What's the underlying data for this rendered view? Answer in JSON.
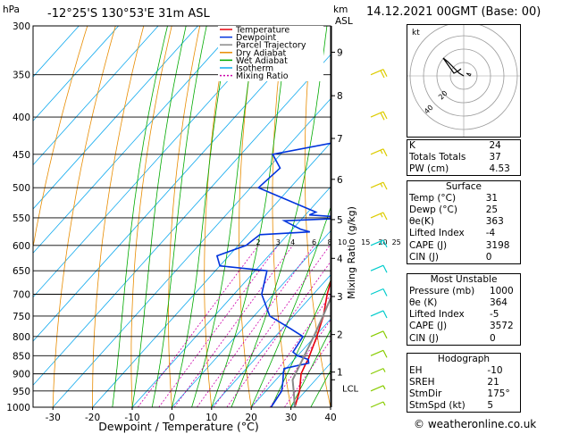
{
  "header": {
    "hpa_label": "hPa",
    "location": "-12°25'S  130°53'E  31m  ASL",
    "km_label": "km",
    "asl_label": "ASL",
    "datetime": "14.12.2021  00GMT  (Base: 00)"
  },
  "legend": [
    {
      "label": "Temperature",
      "color": "#e8000b"
    },
    {
      "label": "Dewpoint",
      "color": "#0033dd"
    },
    {
      "label": "Parcel Trajectory",
      "color": "#888888"
    },
    {
      "label": "Dry Adiabat",
      "color": "#e88c00"
    },
    {
      "label": "Wet Adiabat",
      "color": "#00aa00"
    },
    {
      "label": "Isotherm",
      "color": "#11aaee"
    },
    {
      "label": "Mixing Ratio",
      "color": "#cc00aa"
    }
  ],
  "chart_data": {
    "type": "line",
    "xlabel": "Dewpoint / Temperature (°C)",
    "ylabel_right": "Mixing Ratio (g/kg)",
    "x_ticks": [
      -30,
      -20,
      -10,
      0,
      10,
      20,
      30,
      40
    ],
    "xlim": [
      -35,
      40
    ],
    "pressure_ticks": [
      300,
      350,
      400,
      450,
      500,
      550,
      600,
      650,
      700,
      750,
      800,
      850,
      900,
      950,
      1000
    ],
    "pressure_range": [
      300,
      1000
    ],
    "km_ticks": [
      {
        "km": "1",
        "p": 895
      },
      {
        "km": "2",
        "p": 795
      },
      {
        "km": "3",
        "p": 705
      },
      {
        "km": "4",
        "p": 625
      },
      {
        "km": "5",
        "p": 553
      },
      {
        "km": "6",
        "p": 487
      },
      {
        "km": "7",
        "p": 428
      },
      {
        "km": "8",
        "p": 374
      },
      {
        "km": "9",
        "p": 326
      }
    ],
    "lcl_label": "LCL",
    "lcl_p": 917,
    "mixing_ratio_labels": [
      "2",
      "3",
      "4",
      "6",
      "8",
      "10",
      "15",
      "20",
      "25"
    ],
    "mixing_ratio_values": [
      2,
      3,
      4,
      6,
      8,
      10,
      15,
      20,
      25
    ],
    "series": [
      {
        "name": "Temperature",
        "color": "#e8000b",
        "p": [
          1000,
          950,
          900,
          875,
          860,
          850,
          800,
          750,
          700,
          650,
          640,
          620,
          600,
          580,
          560,
          550,
          540,
          500,
          450,
          400,
          370,
          350
        ],
        "t": [
          31,
          28.5,
          25,
          24,
          23.5,
          23,
          20.5,
          17.5,
          13.5,
          9.8,
          10.4,
          10,
          9,
          7.5,
          6,
          5.8,
          5,
          1.5,
          -3.5,
          -9.5,
          -14,
          -17.5
        ]
      },
      {
        "name": "Dewpoint",
        "color": "#0033dd",
        "p": [
          1000,
          950,
          920,
          900,
          885,
          870,
          860,
          850,
          840,
          800,
          780,
          750,
          700,
          650,
          640,
          620,
          600,
          580,
          575,
          570,
          560,
          555,
          550,
          545,
          540,
          500,
          470,
          450,
          420,
          410,
          400,
          390,
          380,
          375,
          365,
          360,
          350,
          345,
          330,
          310,
          300
        ],
        "t": [
          25,
          24,
          22,
          20.5,
          19.5,
          24.5,
          23.5,
          20,
          18,
          17,
          12,
          4,
          -3,
          -7,
          -20,
          -23,
          -18,
          -17,
          -5,
          -8,
          -12,
          -14,
          2.5,
          -9,
          -8,
          -28,
          -27,
          -32,
          -8,
          -8,
          -13,
          -14,
          -27,
          -22,
          -5,
          -17,
          -8,
          -11,
          -15,
          -26,
          -25
        ]
      },
      {
        "name": "Parcel Trajectory",
        "color": "#888888",
        "p": [
          1000,
          950,
          917,
          850,
          800,
          750,
          700,
          650,
          600,
          550,
          500,
          450,
          400,
          370
        ],
        "t": [
          31,
          27,
          24.2,
          21.7,
          19.7,
          17.4,
          14.8,
          12,
          8.9,
          5.4,
          1.4,
          -3.2,
          -8.5,
          -12
        ]
      }
    ],
    "wind_barbs_kt": [
      5,
      5,
      5,
      10,
      10,
      10,
      10,
      10,
      15,
      15,
      15,
      15,
      20,
      20
    ],
    "grid": true
  },
  "hodograph": {
    "unit_label": "kt",
    "ring_labels": [
      "20",
      "40"
    ]
  },
  "indices": {
    "top_rows": [
      {
        "label": "K",
        "value": "24"
      },
      {
        "label": "Totals Totals",
        "value": "37"
      },
      {
        "label": "PW (cm)",
        "value": "4.53"
      }
    ],
    "surface": {
      "title": "Surface",
      "rows": [
        {
          "label": "Temp (°C)",
          "value": "31"
        },
        {
          "label": "Dewp (°C)",
          "value": "25"
        },
        {
          "label": "θe(K)",
          "value": "363"
        },
        {
          "label": "Lifted Index",
          "value": "-4"
        },
        {
          "label": "CAPE (J)",
          "value": "3198"
        },
        {
          "label": "CIN (J)",
          "value": "0"
        }
      ]
    },
    "most_unstable": {
      "title": "Most Unstable",
      "rows": [
        {
          "label": "Pressure (mb)",
          "value": "1000"
        },
        {
          "label": "θe (K)",
          "value": "364"
        },
        {
          "label": "Lifted Index",
          "value": "-5"
        },
        {
          "label": "CAPE (J)",
          "value": "3572"
        },
        {
          "label": "CIN (J)",
          "value": "0"
        }
      ]
    },
    "hodograph_box": {
      "title": "Hodograph",
      "rows": [
        {
          "label": "EH",
          "value": "-10"
        },
        {
          "label": "SREH",
          "value": "21"
        },
        {
          "label": "StmDir",
          "value": "175°"
        },
        {
          "label": "StmSpd (kt)",
          "value": "5"
        }
      ]
    }
  },
  "credit": "© weatheronline.co.uk"
}
